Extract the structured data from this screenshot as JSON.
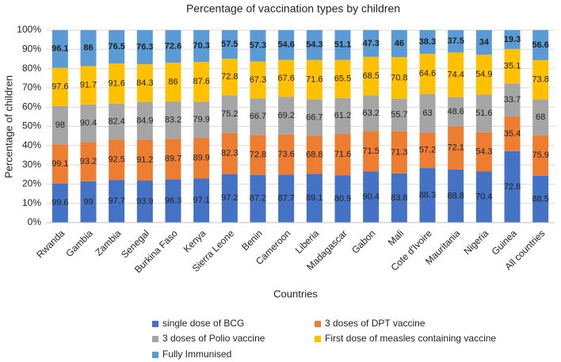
{
  "chart_data": {
    "type": "bar",
    "stacked": "percent",
    "title": "Percentage of vaccination types by children",
    "x_label": "Countries",
    "y_label": "Percentage of children",
    "categories": [
      "Rwanda",
      "Gambia",
      "Zambia",
      "Senegal",
      "Burkina Faso",
      "Kenya",
      "Sierra Leone",
      "Benin",
      "Cameroon",
      "Liberia",
      "Madagascar",
      "Gabon",
      "Mali",
      "Cote d'Ivoire",
      "Mauritania",
      "Nigeria",
      "Guinea",
      "All countries"
    ],
    "series": [
      {
        "name": "single dose of BCG",
        "color": "#4472c4",
        "values": [
          99.6,
          99,
          97.7,
          93.9,
          96.3,
          97.1,
          97.2,
          87.2,
          87.7,
          89.1,
          80.9,
          90.4,
          83.8,
          88.3,
          88.8,
          70.4,
          72.8,
          88.5
        ]
      },
      {
        "name": "3 doses of DPT vaccine",
        "color": "#ed7d31",
        "values": [
          99.1,
          93.2,
          92.5,
          91.2,
          89.7,
          89.9,
          82.3,
          72.8,
          73.6,
          68.8,
          71.6,
          71.5,
          71.3,
          57.2,
          72.1,
          54.3,
          35.4,
          75.9
        ]
      },
      {
        "name": "3 doses of Polio vaccine",
        "color": "#a5a5a5",
        "values": [
          98,
          90.4,
          82.4,
          84.9,
          83.2,
          79.9,
          75.2,
          66.7,
          69.2,
          66.7,
          61.2,
          63.2,
          55.7,
          63,
          48.6,
          51.6,
          33.7,
          68
        ]
      },
      {
        "name": "First dose of measles containing vaccine",
        "color": "#ffc000",
        "values": [
          97.6,
          91.7,
          91.6,
          84.3,
          86,
          87.6,
          72.8,
          67.3,
          67.6,
          71.6,
          65.5,
          68.5,
          70.8,
          64.6,
          74.4,
          54.9,
          35.1,
          73.8
        ]
      },
      {
        "name": "Fully Immunised",
        "color": "#5b9bd5",
        "bold_labels": true,
        "values": [
          96.1,
          86,
          76.5,
          76.3,
          72.6,
          70.3,
          57.5,
          57.3,
          54.6,
          54.3,
          51.1,
          47.3,
          46,
          38.3,
          37.5,
          34,
          19.3,
          56.6
        ]
      }
    ],
    "ylim": [
      0,
      100
    ],
    "yticks": [
      {
        "value": 0,
        "label": "0%"
      },
      {
        "value": 10,
        "label": "10%"
      },
      {
        "value": 20,
        "label": "20%"
      },
      {
        "value": 30,
        "label": "30%"
      },
      {
        "value": 40,
        "label": "40%"
      },
      {
        "value": 50,
        "label": "50%"
      },
      {
        "value": 60,
        "label": "60%"
      },
      {
        "value": 70,
        "label": "70%"
      },
      {
        "value": 80,
        "label": "80%"
      },
      {
        "value": 90,
        "label": "90%"
      },
      {
        "value": 100,
        "label": "100%"
      }
    ],
    "grid": true
  }
}
